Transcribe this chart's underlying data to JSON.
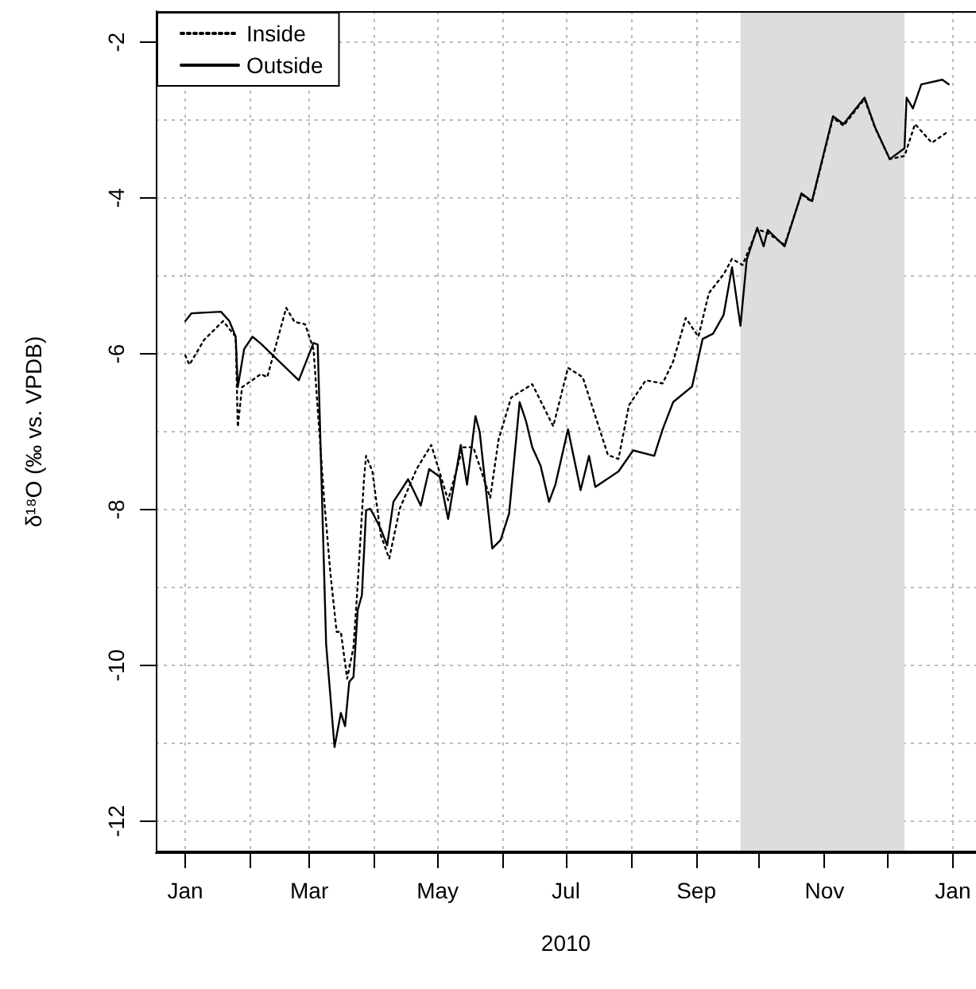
{
  "chart_data": {
    "type": "line",
    "xlabel": "2010",
    "ylabel": "δ¹⁸O (‰ vs. VPDB)",
    "xlim": [
      "2009-12-18",
      "2011-01-12"
    ],
    "ylim": [
      -12.4,
      -1.6
    ],
    "xticks": [
      {
        "value": "2010-01-01",
        "label": "Jan"
      },
      {
        "value": "2010-02-01",
        "label": null
      },
      {
        "value": "2010-03-01",
        "label": "Mar"
      },
      {
        "value": "2010-04-01",
        "label": null
      },
      {
        "value": "2010-05-01",
        "label": "May"
      },
      {
        "value": "2010-06-01",
        "label": null
      },
      {
        "value": "2010-07-01",
        "label": "Jul"
      },
      {
        "value": "2010-08-01",
        "label": null
      },
      {
        "value": "2010-09-01",
        "label": "Sep"
      },
      {
        "value": "2010-10-01",
        "label": null
      },
      {
        "value": "2010-11-01",
        "label": "Nov"
      },
      {
        "value": "2010-12-01",
        "label": null
      },
      {
        "value": "2011-01-01",
        "label": "Jan"
      }
    ],
    "yticks": [
      -12,
      -10,
      -8,
      -6,
      -4,
      -2
    ],
    "grid": true,
    "legend": "top left",
    "marker": "none",
    "bands": [
      {
        "axis": "x",
        "from": "2010-09-22",
        "to": "2010-12-09",
        "color": "#dddddd"
      }
    ],
    "series": [
      {
        "name": "Inside",
        "color": "#000000",
        "line_style": "dotted",
        "x": [
          "2010-01-01",
          "2010-01-03",
          "2010-01-10",
          "2010-01-19",
          "2010-01-25",
          "2010-01-26",
          "2010-01-28",
          "2010-02-06",
          "2010-02-09",
          "2010-02-18",
          "2010-02-22",
          "2010-02-27",
          "2010-03-03",
          "2010-03-08",
          "2010-03-11",
          "2010-03-14",
          "2010-03-16",
          "2010-03-19",
          "2010-03-22",
          "2010-03-24",
          "2010-03-27",
          "2010-03-28",
          "2010-03-31",
          "2010-04-04",
          "2010-04-08",
          "2010-04-13",
          "2010-04-21",
          "2010-04-28",
          "2010-05-06",
          "2010-05-13",
          "2010-05-18",
          "2010-05-26",
          "2010-05-30",
          "2010-06-05",
          "2010-06-15",
          "2010-06-25",
          "2010-07-02",
          "2010-07-09",
          "2010-07-21",
          "2010-07-26",
          "2010-07-31",
          "2010-08-08",
          "2010-08-16",
          "2010-08-21",
          "2010-08-27",
          "2010-09-02",
          "2010-09-07",
          "2010-09-14",
          "2010-09-18",
          "2010-09-23",
          "2010-09-30",
          "2010-10-05",
          "2010-10-13",
          "2010-10-21",
          "2010-10-26",
          "2010-11-05",
          "2010-11-10",
          "2010-11-20",
          "2010-11-25",
          "2010-12-02",
          "2010-12-09",
          "2010-12-14",
          "2010-12-22",
          "2010-12-29"
        ],
        "values": [
          -6.02,
          -6.14,
          -5.82,
          -5.58,
          -5.78,
          -6.94,
          -6.43,
          -6.26,
          -6.3,
          -5.41,
          -5.59,
          -5.62,
          -5.94,
          -7.85,
          -8.81,
          -9.57,
          -9.57,
          -10.17,
          -9.77,
          -8.97,
          -7.61,
          -7.31,
          -7.51,
          -8.33,
          -8.63,
          -7.99,
          -7.48,
          -7.17,
          -7.88,
          -7.2,
          -7.2,
          -7.85,
          -7.1,
          -6.56,
          -6.39,
          -6.93,
          -6.18,
          -6.3,
          -7.3,
          -7.35,
          -6.66,
          -6.34,
          -6.38,
          -6.1,
          -5.54,
          -5.78,
          -5.22,
          -4.98,
          -4.78,
          -4.86,
          -4.4,
          -4.45,
          -4.6,
          -3.95,
          -4.05,
          -2.97,
          -3.07,
          -2.73,
          -3.1,
          -3.5,
          -3.46,
          -3.05,
          -3.29,
          -3.16
        ]
      },
      {
        "name": "Outside",
        "color": "#000000",
        "line_style": "solid",
        "x": [
          "2010-01-01",
          "2010-01-04",
          "2010-01-18",
          "2010-01-22",
          "2010-01-25",
          "2010-01-26",
          "2010-01-29",
          "2010-02-02",
          "2010-02-06",
          "2010-02-24",
          "2010-03-03",
          "2010-03-05",
          "2010-03-09",
          "2010-03-13",
          "2010-03-16",
          "2010-03-18",
          "2010-03-20",
          "2010-03-22",
          "2010-03-24",
          "2010-03-26",
          "2010-03-28",
          "2010-03-30",
          "2010-04-01",
          "2010-04-04",
          "2010-04-07",
          "2010-04-10",
          "2010-04-17",
          "2010-04-23",
          "2010-04-27",
          "2010-05-02",
          "2010-05-06",
          "2010-05-12",
          "2010-05-15",
          "2010-05-19",
          "2010-05-21",
          "2010-05-27",
          "2010-05-31",
          "2010-06-04",
          "2010-06-09",
          "2010-06-12",
          "2010-06-15",
          "2010-06-19",
          "2010-06-23",
          "2010-06-26",
          "2010-07-02",
          "2010-07-08",
          "2010-07-12",
          "2010-07-15",
          "2010-07-26",
          "2010-08-02",
          "2010-08-12",
          "2010-08-16",
          "2010-08-21",
          "2010-08-30",
          "2010-09-04",
          "2010-09-09",
          "2010-09-14",
          "2010-09-18",
          "2010-09-22",
          "2010-09-25",
          "2010-09-30",
          "2010-10-03",
          "2010-10-05",
          "2010-10-13",
          "2010-10-21",
          "2010-10-26",
          "2010-11-05",
          "2010-11-10",
          "2010-11-20",
          "2010-11-25",
          "2010-12-02",
          "2010-12-09",
          "2010-12-10",
          "2010-12-13",
          "2010-12-17",
          "2010-12-27",
          "2010-12-30"
        ],
        "values": [
          -5.58,
          -5.48,
          -5.46,
          -5.58,
          -5.78,
          -6.43,
          -5.94,
          -5.78,
          -5.87,
          -6.34,
          -5.86,
          -5.88,
          -9.73,
          -11.05,
          -10.61,
          -10.78,
          -10.21,
          -10.15,
          -9.29,
          -9.1,
          -8.01,
          -7.99,
          -8.09,
          -8.25,
          -8.46,
          -7.9,
          -7.61,
          -7.95,
          -7.48,
          -7.58,
          -8.12,
          -7.17,
          -7.68,
          -6.8,
          -7.0,
          -8.5,
          -8.39,
          -8.05,
          -6.62,
          -6.86,
          -7.2,
          -7.44,
          -7.9,
          -7.68,
          -6.97,
          -7.75,
          -7.31,
          -7.71,
          -7.51,
          -7.24,
          -7.31,
          -6.97,
          -6.62,
          -6.42,
          -5.81,
          -5.74,
          -5.5,
          -4.89,
          -5.64,
          -4.79,
          -4.38,
          -4.62,
          -4.41,
          -4.62,
          -3.94,
          -4.04,
          -2.95,
          -3.05,
          -2.71,
          -3.09,
          -3.5,
          -3.36,
          -2.71,
          -2.85,
          -2.54,
          -2.48,
          -2.54
        ]
      }
    ]
  }
}
